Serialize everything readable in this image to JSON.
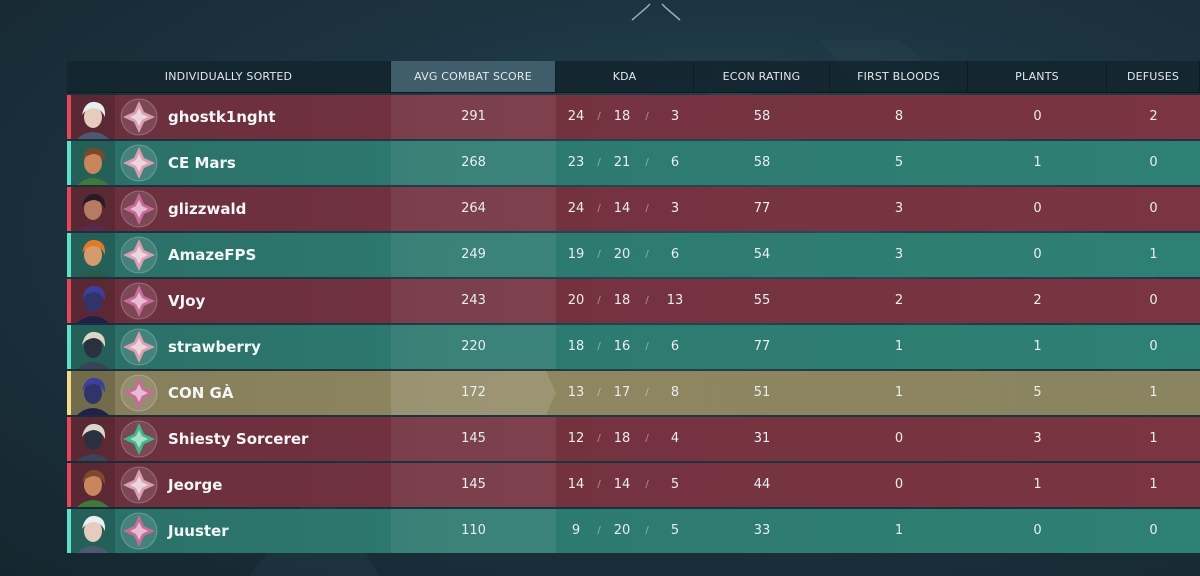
{
  "columns": [
    {
      "key": "name",
      "label": "INDIVIDUALLY SORTED"
    },
    {
      "key": "acs",
      "label": "AVG COMBAT SCORE"
    },
    {
      "key": "kda",
      "label": "KDA"
    },
    {
      "key": "econ",
      "label": "ECON RATING"
    },
    {
      "key": "fb",
      "label": "FIRST BLOODS"
    },
    {
      "key": "plants",
      "label": "PLANTS"
    },
    {
      "key": "defuses",
      "label": "DEFUSES"
    }
  ],
  "kda_separator": "/",
  "team_colors": {
    "red": "#e5475a",
    "green": "#5fe0c8",
    "self": "#f0dc8a"
  },
  "players": [
    {
      "name": "ghostk1nght",
      "team": "red",
      "agent": "silver-hair-agent",
      "rank_color": "#d9a0b4",
      "acs": "291",
      "k": "24",
      "d": "18",
      "a": "3",
      "econ": "58",
      "fb": "8",
      "plants": "0",
      "defuses": "2"
    },
    {
      "name": "CE Mars",
      "team": "green",
      "agent": "headband-agent",
      "rank_color": "#d9a0b4",
      "acs": "268",
      "k": "23",
      "d": "21",
      "a": "6",
      "econ": "58",
      "fb": "5",
      "plants": "1",
      "defuses": "0"
    },
    {
      "name": "glizzwald",
      "team": "red",
      "agent": "dark-hair-agent",
      "rank_color": "#c86a9a",
      "acs": "264",
      "k": "24",
      "d": "14",
      "a": "3",
      "econ": "77",
      "fb": "3",
      "plants": "0",
      "defuses": "0"
    },
    {
      "name": "AmazeFPS",
      "team": "green",
      "agent": "orange-hair-agent",
      "rank_color": "#d9a0b4",
      "acs": "249",
      "k": "19",
      "d": "20",
      "a": "6",
      "econ": "54",
      "fb": "3",
      "plants": "0",
      "defuses": "1"
    },
    {
      "name": "VJoy",
      "team": "red",
      "agent": "hooded-agent",
      "rank_color": "#c86a9a",
      "acs": "243",
      "k": "20",
      "d": "18",
      "a": "13",
      "econ": "55",
      "fb": "2",
      "plants": "2",
      "defuses": "0"
    },
    {
      "name": "strawberry",
      "team": "green",
      "agent": "hat-agent",
      "rank_color": "#d9a0b4",
      "acs": "220",
      "k": "18",
      "d": "16",
      "a": "6",
      "econ": "77",
      "fb": "1",
      "plants": "1",
      "defuses": "0"
    },
    {
      "name": "CON GÀ",
      "team": "self",
      "agent": "hooded-agent",
      "rank_color": "#c86a9a",
      "acs": "172",
      "k": "13",
      "d": "17",
      "a": "8",
      "econ": "51",
      "fb": "1",
      "plants": "5",
      "defuses": "1"
    },
    {
      "name": "Shiesty Sorcerer",
      "team": "red",
      "agent": "hat-agent",
      "rank_color": "#3fb88a",
      "acs": "145",
      "k": "12",
      "d": "18",
      "a": "4",
      "econ": "31",
      "fb": "0",
      "plants": "3",
      "defuses": "1"
    },
    {
      "name": "Jeorge",
      "team": "red",
      "agent": "headband-agent",
      "rank_color": "#d9a0b4",
      "acs": "145",
      "k": "14",
      "d": "14",
      "a": "5",
      "econ": "44",
      "fb": "0",
      "plants": "1",
      "defuses": "1"
    },
    {
      "name": "Juuster",
      "team": "green",
      "agent": "silver-hair-agent",
      "rank_color": "#c86a9a",
      "acs": "110",
      "k": "9",
      "d": "20",
      "a": "5",
      "econ": "33",
      "fb": "1",
      "plants": "0",
      "defuses": "0"
    }
  ]
}
